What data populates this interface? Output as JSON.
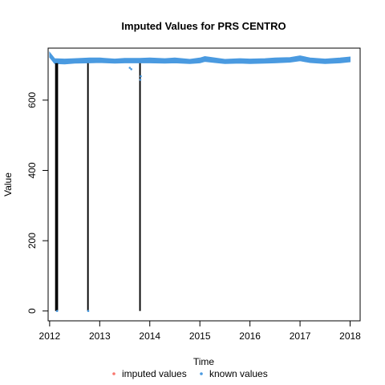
{
  "chart_data": {
    "type": "line",
    "title": "Imputed Values for  PRS CENTRO",
    "xlabel": "Time",
    "ylabel": "Value",
    "xlim": [
      2011.97,
      2018.2
    ],
    "ylim": [
      -28,
      748
    ],
    "xticks": [
      2012,
      2013,
      2014,
      2015,
      2016,
      2017,
      2018
    ],
    "yticks": [
      0,
      200,
      400,
      600
    ],
    "legend": {
      "placement": "bottom",
      "orientation": "horizontal"
    },
    "series": [
      {
        "name": "known values",
        "color": "#4a9ae0",
        "band": [
          [
            2012.0,
            722,
            736
          ],
          [
            2012.1,
            704,
            718
          ],
          [
            2012.3,
            703,
            717
          ],
          [
            2012.5,
            705,
            718
          ],
          [
            2012.8,
            706,
            720
          ],
          [
            2013.0,
            707,
            720
          ],
          [
            2013.3,
            705,
            717
          ],
          [
            2013.5,
            706,
            719
          ],
          [
            2013.8,
            706,
            719
          ],
          [
            2014.0,
            706,
            720
          ],
          [
            2014.3,
            705,
            718
          ],
          [
            2014.5,
            706,
            720
          ],
          [
            2014.8,
            704,
            716
          ],
          [
            2015.0,
            706,
            720
          ],
          [
            2015.1,
            710,
            724
          ],
          [
            2015.3,
            707,
            720
          ],
          [
            2015.5,
            704,
            716
          ],
          [
            2015.8,
            705,
            718
          ],
          [
            2016.0,
            704,
            717
          ],
          [
            2016.3,
            705,
            718
          ],
          [
            2016.5,
            706,
            720
          ],
          [
            2016.8,
            708,
            721
          ],
          [
            2017.0,
            712,
            726
          ],
          [
            2017.2,
            707,
            720
          ],
          [
            2017.5,
            704,
            717
          ],
          [
            2017.8,
            706,
            720
          ],
          [
            2018.0,
            709,
            723
          ]
        ],
        "gap_points": [
          [
            2012.15,
            0
          ],
          [
            2012.77,
            0
          ],
          [
            2013.6,
            692
          ],
          [
            2013.63,
            688
          ],
          [
            2013.81,
            658
          ],
          [
            2013.82,
            668
          ]
        ]
      },
      {
        "name": "imputed values",
        "color": "#f8766d",
        "dropouts": [
          [
            2012.11,
            2012.17
          ],
          [
            2012.75,
            2012.78
          ],
          [
            2013.79,
            2013.82
          ]
        ]
      }
    ]
  }
}
